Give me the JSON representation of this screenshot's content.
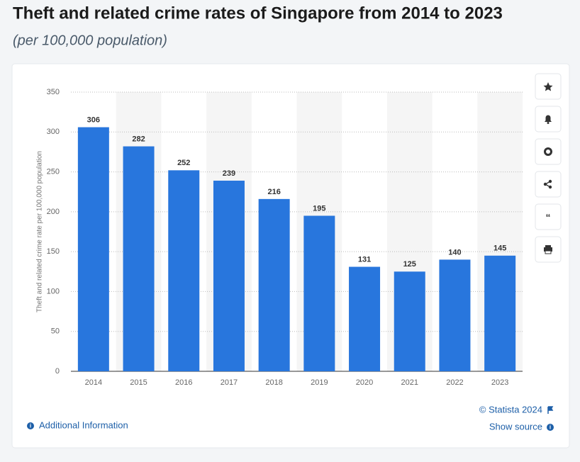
{
  "chart_data": {
    "type": "bar",
    "title": "Theft and related crime rates of Singapore from 2014 to 2023",
    "subtitle": "(per 100,000 population)",
    "y_label": "Theft and related crime rate per 100,000 population",
    "categories": [
      "2014",
      "2015",
      "2016",
      "2017",
      "2018",
      "2019",
      "2020",
      "2021",
      "2022",
      "2023"
    ],
    "values": [
      306,
      282,
      252,
      239,
      216,
      195,
      131,
      125,
      140,
      145
    ],
    "color": "#2876dd",
    "ylim": [
      0,
      350
    ],
    "yticks": [
      0,
      50,
      100,
      150,
      200,
      250,
      300,
      350
    ],
    "grid": true
  },
  "footer": {
    "copyright": "© Statista 2024",
    "additional_info": "Additional Information",
    "show_source": "Show source"
  }
}
